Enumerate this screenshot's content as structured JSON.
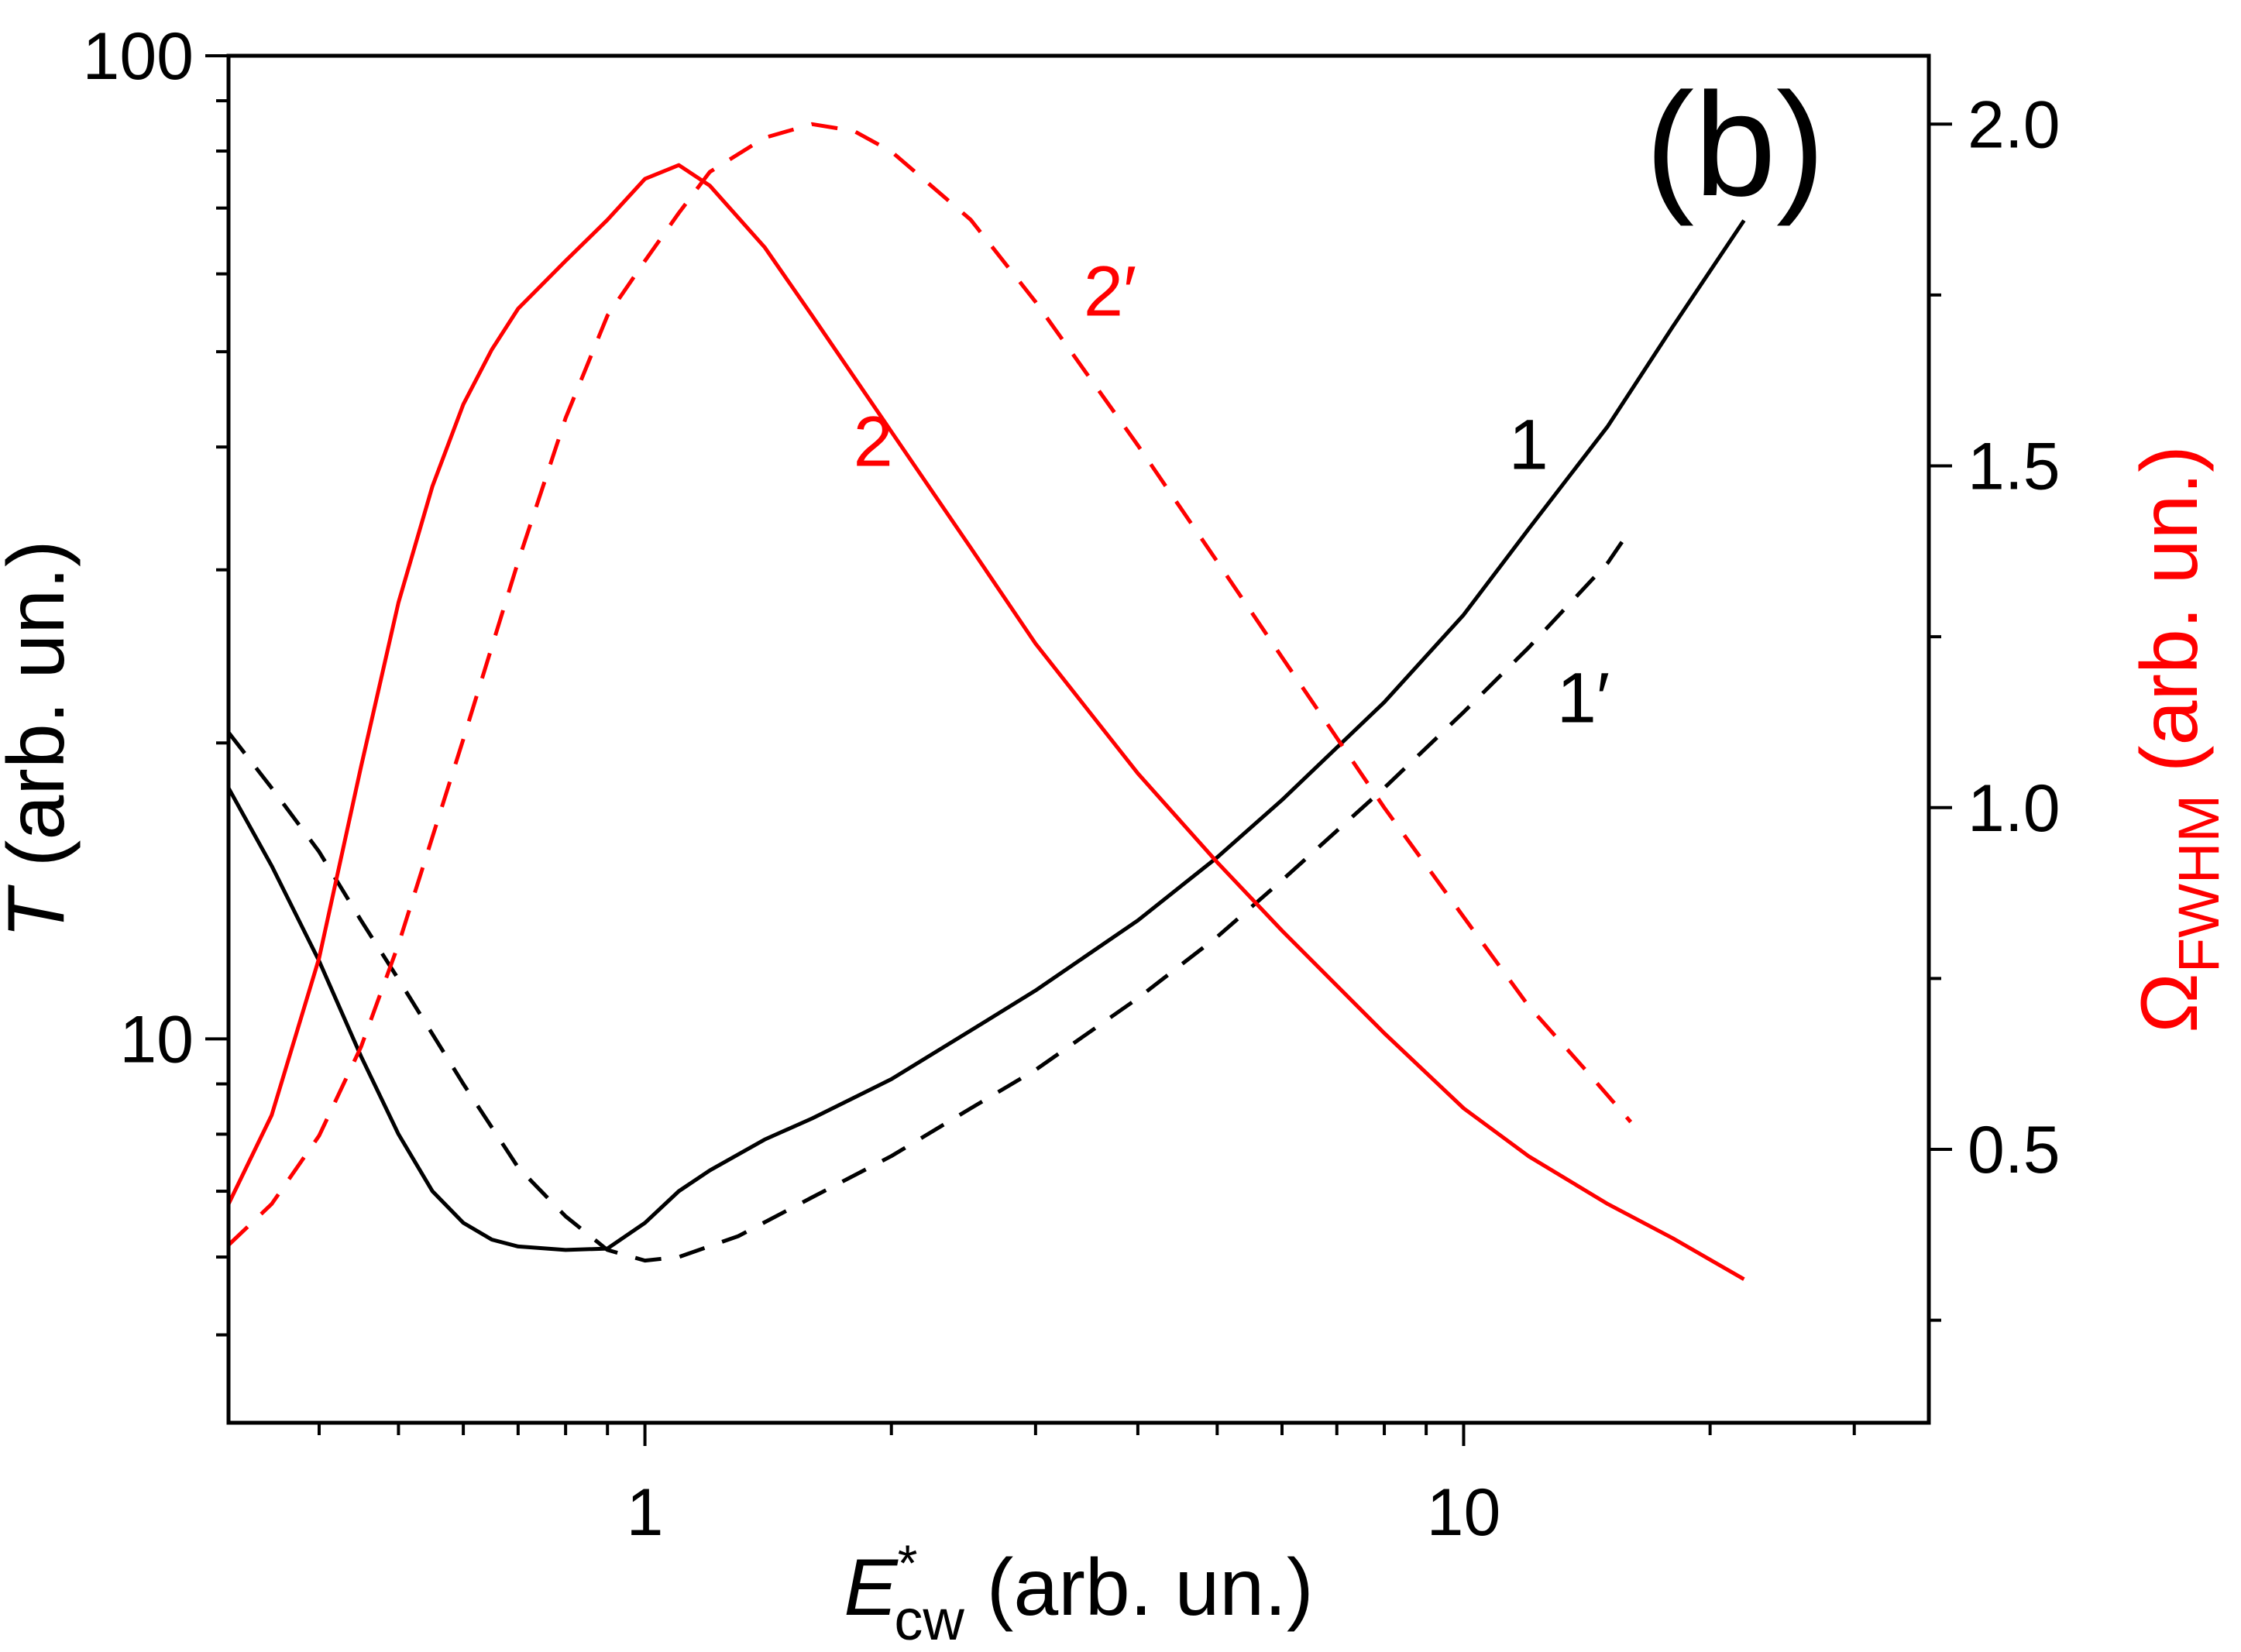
{
  "chart_data": {
    "type": "line",
    "panel_label": "(b)",
    "x_axis": {
      "scale": "log",
      "range": [
        0.31,
        37
      ],
      "ticks": [
        1,
        10
      ],
      "tick_labels": [
        "1",
        "10"
      ],
      "label": {
        "main": "E",
        "sup": "*",
        "sub": "cw",
        "rest": " (arb. un.)"
      }
    },
    "y_axis_left": {
      "scale": "log",
      "range": [
        4.07,
        100
      ],
      "ticks": [
        10,
        100
      ],
      "tick_labels": [
        "10",
        "100"
      ],
      "label": {
        "main": "T",
        "rest": " (arb. un.)"
      },
      "color": "#000000"
    },
    "y_axis_right": {
      "scale": "linear",
      "range": [
        0.1,
        2.1
      ],
      "ticks": [
        0.5,
        1.0,
        1.5,
        2.0
      ],
      "tick_labels": [
        "0.5",
        "1.0",
        "1.5",
        "2.0"
      ],
      "label": {
        "main": "Ω",
        "sub": "FWHM",
        "rest": " (arb. un.)"
      },
      "color": "#ff0000"
    },
    "series": [
      {
        "id": "1",
        "name": "1",
        "axis": "left",
        "color": "#000000",
        "dash": false,
        "x": [
          0.31,
          0.35,
          0.4,
          0.45,
          0.5,
          0.55,
          0.6,
          0.65,
          0.7,
          0.8,
          0.9,
          1.0,
          1.1,
          1.2,
          1.4,
          1.6,
          2.0,
          2.5,
          3.0,
          4.0,
          5.0,
          6.0,
          8.0,
          10.0,
          12.0,
          15.0,
          18.0,
          22.0
        ],
        "y": [
          18.0,
          15.0,
          12.0,
          9.6,
          8.0,
          7.0,
          6.5,
          6.25,
          6.15,
          6.1,
          6.12,
          6.5,
          7.0,
          7.35,
          7.9,
          8.3,
          9.1,
          10.2,
          11.2,
          13.2,
          15.3,
          17.5,
          22.0,
          27.0,
          33.0,
          42.0,
          53.0,
          68.0
        ]
      },
      {
        "id": "1prime",
        "name": "1′",
        "axis": "left",
        "color": "#000000",
        "dash": true,
        "x": [
          0.31,
          0.35,
          0.4,
          0.45,
          0.5,
          0.6,
          0.7,
          0.8,
          0.9,
          1.0,
          1.1,
          1.3,
          1.6,
          2.0,
          2.5,
          3.0,
          4.0,
          5.0,
          6.0,
          8.0,
          10.0,
          12.0,
          15.0,
          16.0
        ],
        "y": [
          20.5,
          18.0,
          15.5,
          13.2,
          11.5,
          9.0,
          7.4,
          6.6,
          6.1,
          5.95,
          6.0,
          6.3,
          6.9,
          7.6,
          8.5,
          9.3,
          11.0,
          12.7,
          14.5,
          18.0,
          21.5,
          25.0,
          30.5,
          33.0
        ]
      },
      {
        "id": "2",
        "name": "2",
        "axis": "right",
        "color": "#ff0000",
        "dash": false,
        "x": [
          0.31,
          0.35,
          0.4,
          0.45,
          0.5,
          0.55,
          0.6,
          0.65,
          0.7,
          0.8,
          0.9,
          1.0,
          1.1,
          1.2,
          1.4,
          1.6,
          2.0,
          2.5,
          3.0,
          4.0,
          5.0,
          6.0,
          8.0,
          10.0,
          12.0,
          15.0,
          18.0,
          22.0
        ],
        "y": [
          0.42,
          0.55,
          0.78,
          1.06,
          1.3,
          1.47,
          1.59,
          1.67,
          1.73,
          1.8,
          1.86,
          1.92,
          1.94,
          1.91,
          1.82,
          1.72,
          1.55,
          1.38,
          1.24,
          1.05,
          0.92,
          0.82,
          0.67,
          0.56,
          0.49,
          0.42,
          0.37,
          0.31
        ]
      },
      {
        "id": "2prime",
        "name": "2′",
        "axis": "right",
        "color": "#ff0000",
        "dash": true,
        "x": [
          0.31,
          0.35,
          0.4,
          0.45,
          0.5,
          0.6,
          0.7,
          0.8,
          0.9,
          1.0,
          1.1,
          1.2,
          1.4,
          1.6,
          1.8,
          2.0,
          2.5,
          3.0,
          4.0,
          5.0,
          6.0,
          8.0,
          10.0,
          12.0,
          14.0,
          16.0
        ],
        "y": [
          0.36,
          0.42,
          0.52,
          0.65,
          0.8,
          1.1,
          1.36,
          1.57,
          1.72,
          1.8,
          1.87,
          1.93,
          1.98,
          2.0,
          1.99,
          1.96,
          1.86,
          1.74,
          1.53,
          1.36,
          1.22,
          1.0,
          0.84,
          0.71,
          0.62,
          0.54
        ]
      }
    ],
    "annotations": [
      {
        "text": "1",
        "color": "#000000",
        "x": 12.0,
        "y": 38.0,
        "axis": "left"
      },
      {
        "text": "1′",
        "color": "#000000",
        "x": 14.0,
        "y": 21.0,
        "axis": "left"
      },
      {
        "text": "2",
        "color": "#ff0000",
        "x": 1.9,
        "y": 1.5,
        "axis": "right"
      },
      {
        "text": "2′",
        "color": "#ff0000",
        "x": 3.7,
        "y": 1.72,
        "axis": "right"
      }
    ]
  }
}
